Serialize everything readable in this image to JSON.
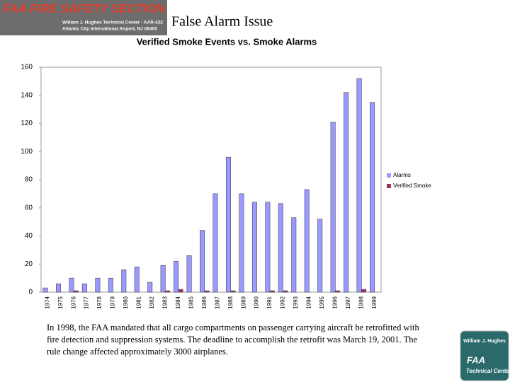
{
  "header": {
    "section": "FAA FIRE SAFETY SECTION",
    "center": "William J. Hughes Technical Center - AAR-422",
    "address": "Atlantic City International Airport, NJ 08405",
    "title": "False Alarm Issue"
  },
  "caption": "In 1998, the FAA mandated that all cargo compartments on passenger carrying aircraft be retrofitted with fire detection and suppression systems. The deadline to accomplish the retrofit was March 19, 2001. The rule change affected approximately 3000 airplanes.",
  "logo": {
    "ring": "William J. Hughes",
    "faa": "FAA",
    "center": "Technical Center"
  },
  "chart_data": {
    "type": "bar",
    "title": "Verified Smoke Events vs. Smoke Alarms",
    "categories": [
      "1974",
      "1975",
      "1976",
      "1977",
      "1978",
      "1979",
      "1980",
      "1981",
      "1982",
      "1983",
      "1984",
      "1985",
      "1986",
      "1987",
      "1988",
      "1989",
      "1990",
      "1991",
      "1992",
      "1993",
      "1994",
      "1995",
      "1996",
      "1997",
      "1998",
      "1999"
    ],
    "series": [
      {
        "name": "Alarms",
        "color": "#9999ff",
        "values": [
          3,
          6,
          10,
          6,
          10,
          10,
          16,
          18,
          7,
          19,
          22,
          26,
          44,
          70,
          96,
          70,
          64,
          64,
          63,
          53,
          73,
          52,
          121,
          142,
          152,
          135
        ]
      },
      {
        "name": "Verified Smoke",
        "color": "#993366",
        "values": [
          0,
          0,
          1,
          0,
          0,
          0,
          0,
          0,
          0,
          1,
          2,
          0,
          1,
          0,
          1,
          0,
          0,
          1,
          1,
          0,
          0,
          0,
          1,
          0,
          2,
          0
        ]
      }
    ],
    "ylim": [
      0,
      160
    ],
    "yticks": [
      0,
      20,
      40,
      60,
      80,
      100,
      120,
      140,
      160
    ],
    "legend": "right"
  }
}
